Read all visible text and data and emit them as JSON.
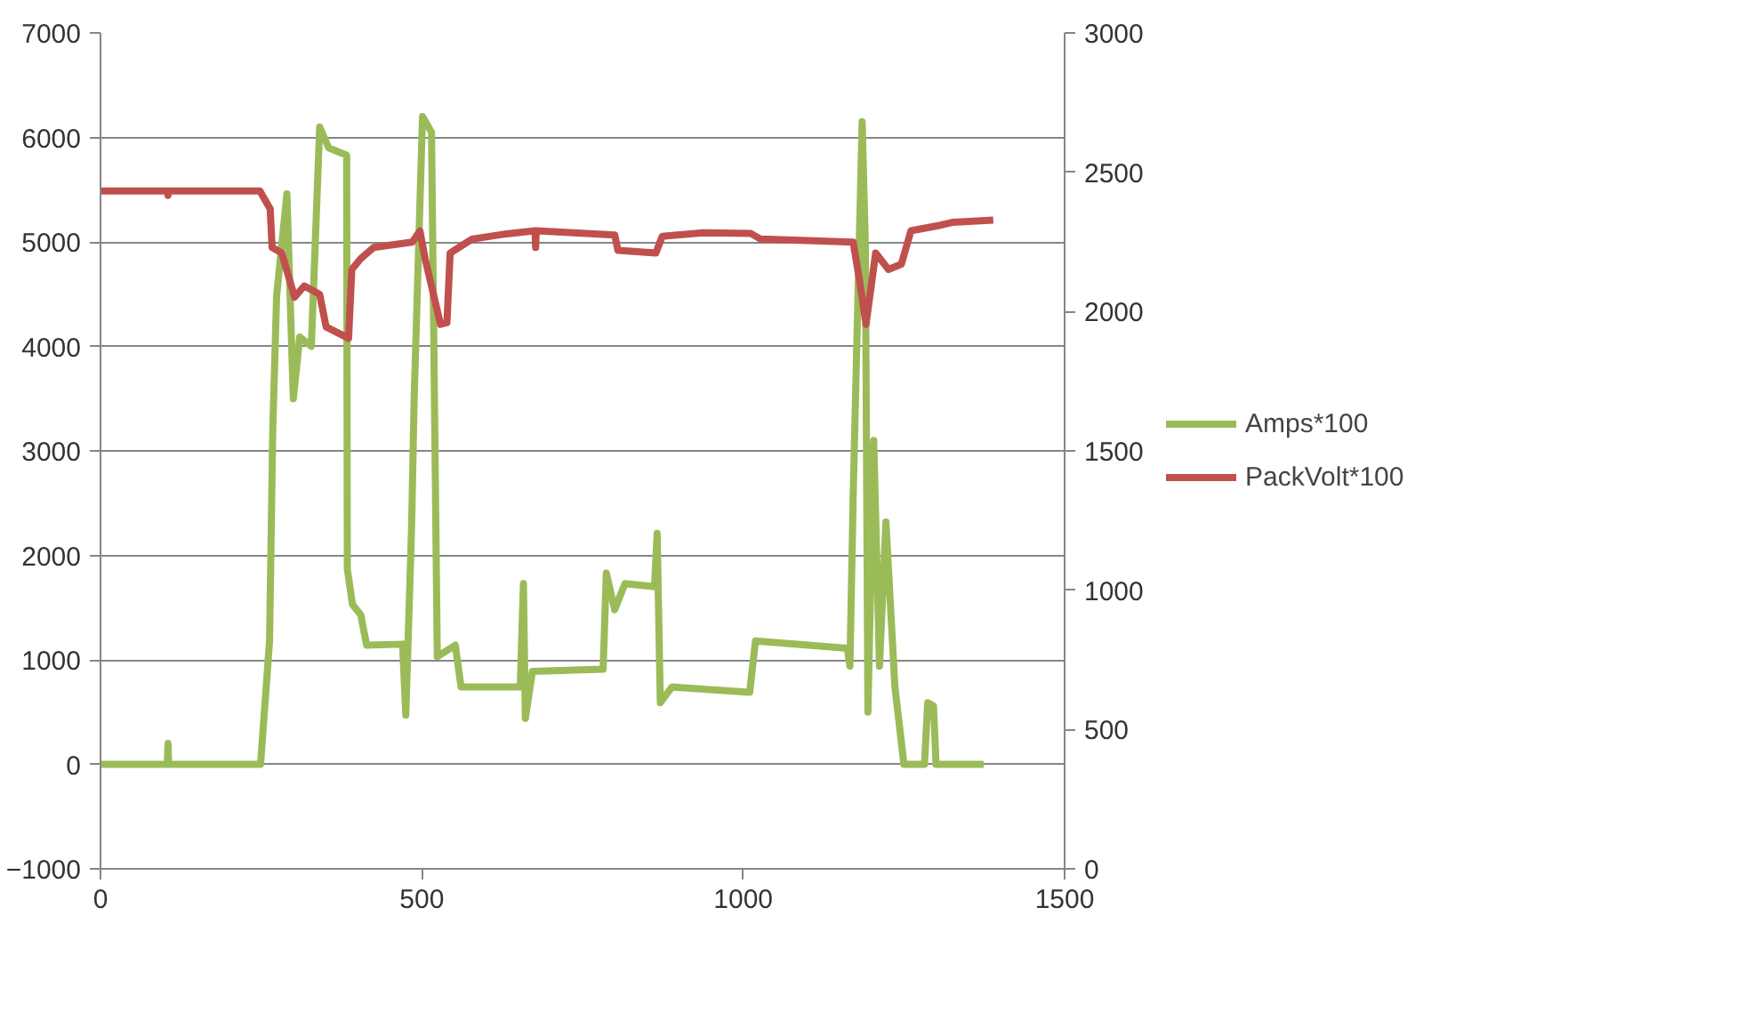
{
  "chart_data": {
    "type": "line",
    "xlim": [
      0,
      1500
    ],
    "xticks": [
      0,
      500,
      1000,
      1500
    ],
    "ylim": [
      -1000,
      7000
    ],
    "yticks": [
      -1000,
      0,
      1000,
      2000,
      3000,
      4000,
      5000,
      6000,
      7000
    ],
    "y2lim": [
      0,
      3000
    ],
    "y2ticks": [
      0,
      500,
      1000,
      1500,
      2000,
      2500,
      3000
    ],
    "grid": "y",
    "legend": "right",
    "marker": "none",
    "line_style": "solid",
    "series": [
      {
        "name": "Amps*100",
        "color": "#9bbb59",
        "x": [
          0,
          104,
          105,
          106,
          249,
          263,
          268,
          274,
          290,
          300,
          310,
          328,
          341,
          355,
          383,
          384,
          392,
          405,
          414,
          470,
          475,
          484,
          488,
          501,
          515,
          524,
          552,
          561,
          653,
          658,
          661,
          672,
          782,
          787,
          800,
          816,
          862,
          866,
          871,
          889,
          1010,
          1019,
          1162,
          1166,
          1171,
          1185,
          1190,
          1194,
          1203,
          1212,
          1222,
          1236,
          1250,
          1282,
          1287,
          1296,
          1300,
          1374
        ],
        "values": [
          0,
          0,
          200,
          0,
          0,
          1180,
          3200,
          4480,
          5460,
          3500,
          4090,
          4000,
          6100,
          5900,
          5830,
          1870,
          1530,
          1430,
          1140,
          1150,
          470,
          2270,
          3500,
          6200,
          6050,
          1030,
          1140,
          740,
          740,
          1730,
          440,
          890,
          910,
          1830,
          1480,
          1730,
          1700,
          2210,
          590,
          740,
          690,
          1180,
          1110,
          940,
          2560,
          6150,
          4970,
          500,
          3100,
          940,
          2320,
          740,
          0,
          0,
          590,
          560,
          0,
          0
        ]
      },
      {
        "name": "PackVolt*100",
        "color": "#c0504d",
        "axis": "y2",
        "x": [
          0,
          104,
          105,
          106,
          248,
          264,
          267,
          282,
          302,
          317,
          341,
          351,
          386,
          391,
          405,
          425,
          485,
          497,
          505,
          529,
          539,
          544,
          578,
          632,
          676,
          677,
          678,
          800,
          805,
          864,
          874,
          938,
          1012,
          1027,
          1171,
          1181,
          1191,
          1206,
          1226,
          1246,
          1261,
          1305,
          1325,
          1389
        ],
        "values": [
          2433,
          2433,
          2417,
          2433,
          2433,
          2368,
          2230,
          2210,
          2052,
          2092,
          2062,
          1945,
          1904,
          2151,
          2190,
          2230,
          2249,
          2289,
          2190,
          1954,
          1960,
          2210,
          2260,
          2279,
          2290,
          2230,
          2290,
          2275,
          2220,
          2210,
          2270,
          2283,
          2280,
          2260,
          2249,
          2111,
          1954,
          2210,
          2151,
          2170,
          2290,
          2309,
          2320,
          2328
        ]
      }
    ]
  }
}
